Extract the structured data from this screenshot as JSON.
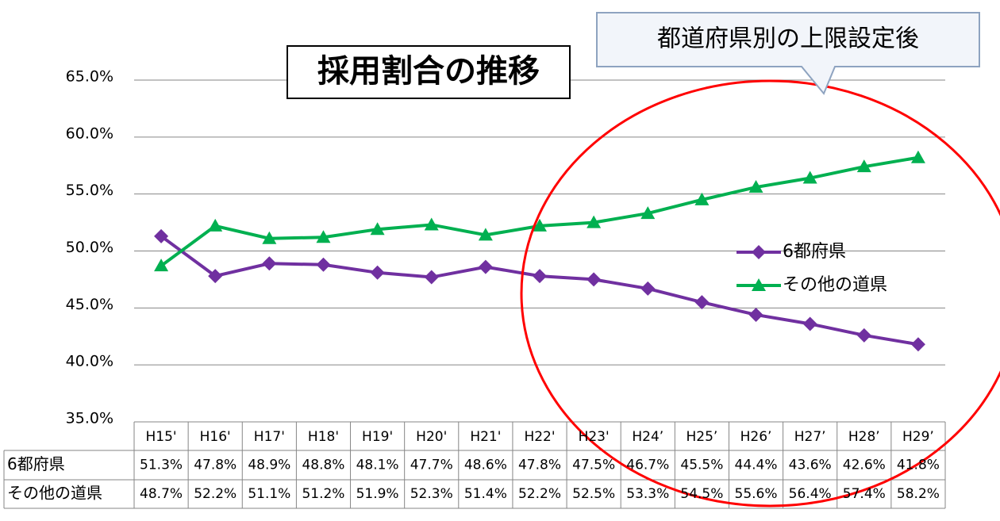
{
  "chart_data": {
    "type": "line",
    "title": "採用割合の推移",
    "annotation": "都道府県別の上限設定後",
    "categories": [
      "H15'",
      "H16'",
      "H17'",
      "H18'",
      "H19'",
      "H20'",
      "H21'",
      "H22'",
      "H23'",
      "H24’",
      "H25’",
      "H26’",
      "H27’",
      "H28’",
      "H29’"
    ],
    "series": [
      {
        "name": "6都府県",
        "color": "#7030a0",
        "marker": "diamond",
        "values": [
          51.3,
          47.8,
          48.9,
          48.8,
          48.1,
          47.7,
          48.6,
          47.8,
          47.5,
          46.7,
          45.5,
          44.4,
          43.6,
          42.6,
          41.8
        ],
        "value_labels": [
          "51.3%",
          "47.8%",
          "48.9%",
          "48.8%",
          "48.1%",
          "47.7%",
          "48.6%",
          "47.8%",
          "47.5%",
          "46.7%",
          "45.5%",
          "44.4%",
          "43.6%",
          "42.6%",
          "41.8%"
        ]
      },
      {
        "name": "その他の道県",
        "color": "#00b050",
        "marker": "triangle",
        "values": [
          48.7,
          52.2,
          51.1,
          51.2,
          51.9,
          52.3,
          51.4,
          52.2,
          52.5,
          53.3,
          54.5,
          55.6,
          56.4,
          57.4,
          58.2
        ],
        "value_labels": [
          "48.7%",
          "52.2%",
          "51.1%",
          "51.2%",
          "51.9%",
          "52.3%",
          "51.4%",
          "52.2%",
          "52.5%",
          "53.3%",
          "54.5%",
          "55.6%",
          "56.4%",
          "57.4%",
          "58.2%"
        ]
      }
    ],
    "ylim": [
      35,
      65
    ],
    "yticks": [
      {
        "value": 35,
        "label": "35.0%"
      },
      {
        "value": 40,
        "label": "40.0%"
      },
      {
        "value": 45,
        "label": "45.0%"
      },
      {
        "value": 50,
        "label": "50.0%"
      },
      {
        "value": 55,
        "label": "55.0%"
      },
      {
        "value": 60,
        "label": "60.0%"
      },
      {
        "value": 65,
        "label": "65.0%"
      }
    ],
    "grid": true
  }
}
